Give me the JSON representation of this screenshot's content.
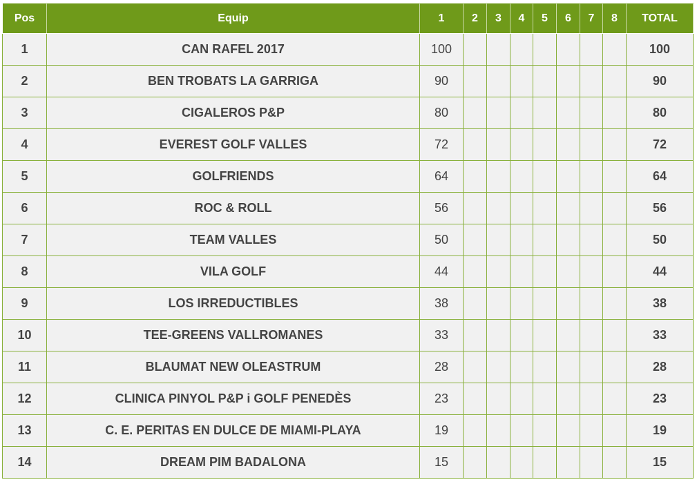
{
  "table": {
    "headers": {
      "pos": "Pos",
      "team": "Equip",
      "rounds": [
        "1",
        "2",
        "3",
        "4",
        "5",
        "6",
        "7",
        "8"
      ],
      "total": "TOTAL"
    },
    "rows": [
      {
        "pos": "1",
        "team": "CAN RAFEL 2017",
        "r1": "100",
        "total": "100"
      },
      {
        "pos": "2",
        "team": "BEN TROBATS LA GARRIGA",
        "r1": "90",
        "total": "90"
      },
      {
        "pos": "3",
        "team": "CIGALEROS P&P",
        "r1": "80",
        "total": "80"
      },
      {
        "pos": "4",
        "team": "EVEREST GOLF VALLES",
        "r1": "72",
        "total": "72"
      },
      {
        "pos": "5",
        "team": "GOLFRIENDS",
        "r1": "64",
        "total": "64"
      },
      {
        "pos": "6",
        "team": "ROC & ROLL",
        "r1": "56",
        "total": "56"
      },
      {
        "pos": "7",
        "team": "TEAM VALLES",
        "r1": "50",
        "total": "50"
      },
      {
        "pos": "8",
        "team": "VILA GOLF",
        "r1": "44",
        "total": "44"
      },
      {
        "pos": "9",
        "team": "LOS IRREDUCTIBLES",
        "r1": "38",
        "total": "38"
      },
      {
        "pos": "10",
        "team": "TEE-GREENS VALLROMANES",
        "r1": "33",
        "total": "33"
      },
      {
        "pos": "11",
        "team": "BLAUMAT NEW OLEASTRUM",
        "r1": "28",
        "total": "28"
      },
      {
        "pos": "12",
        "team": "CLINICA PINYOL P&P i GOLF PENEDÈS",
        "r1": "23",
        "total": "23"
      },
      {
        "pos": "13",
        "team": "C. E. PERITAS EN DULCE DE MIAMI-PLAYA",
        "r1": "19",
        "total": "19"
      },
      {
        "pos": "14",
        "team": "DREAM PIM BADALONA",
        "r1": "15",
        "total": "15"
      }
    ]
  },
  "colors": {
    "header_bg": "#6f9a1a",
    "header_text": "#ffffff",
    "row_bg": "#f1f1f1",
    "grid_line": "#88b03a",
    "cell_text": "#444444"
  }
}
